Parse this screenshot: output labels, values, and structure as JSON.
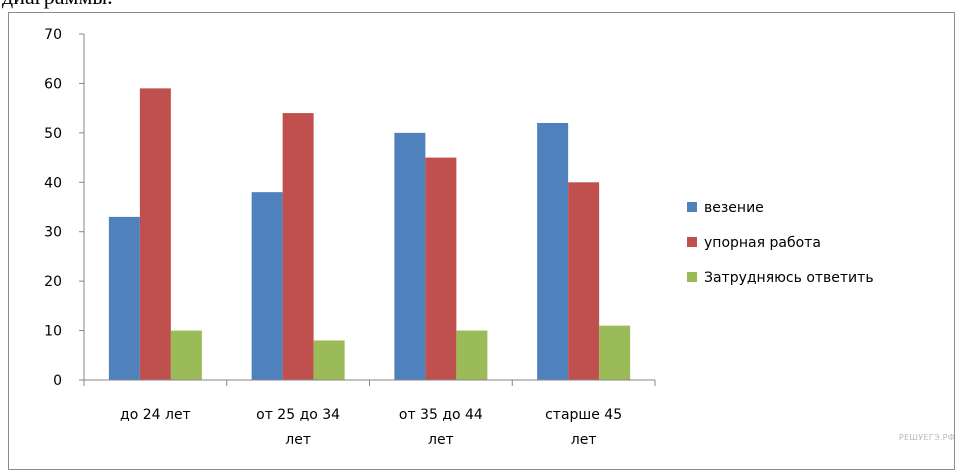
{
  "header_fragment": "диаграммы.",
  "watermark": "РЕШУЕГЭ.РФ",
  "colors": {
    "везение": "#4f81bd",
    "упорная работа": "#c0504d",
    "Затрудняюсь ответить": "#9bbb59"
  },
  "chart_data": {
    "type": "bar",
    "title": "",
    "xlabel": "",
    "ylabel": "",
    "ylim": [
      0,
      70
    ],
    "yticks": [
      0,
      10,
      20,
      30,
      40,
      50,
      60,
      70
    ],
    "grid": false,
    "legend_position": "right",
    "categories": [
      [
        "до 24 лет"
      ],
      [
        "от 25 до 34",
        "лет"
      ],
      [
        "от 35 до 44",
        "лет"
      ],
      [
        "старше 45",
        "лет"
      ]
    ],
    "series": [
      {
        "name": "везение",
        "color": "#4f81bd",
        "values": [
          33,
          38,
          50,
          52
        ]
      },
      {
        "name": "упорная работа",
        "color": "#c0504d",
        "values": [
          59,
          54,
          45,
          40
        ]
      },
      {
        "name": "Затрудняюсь ответить",
        "color": "#9bbb59",
        "values": [
          10,
          8,
          10,
          11
        ]
      }
    ]
  }
}
